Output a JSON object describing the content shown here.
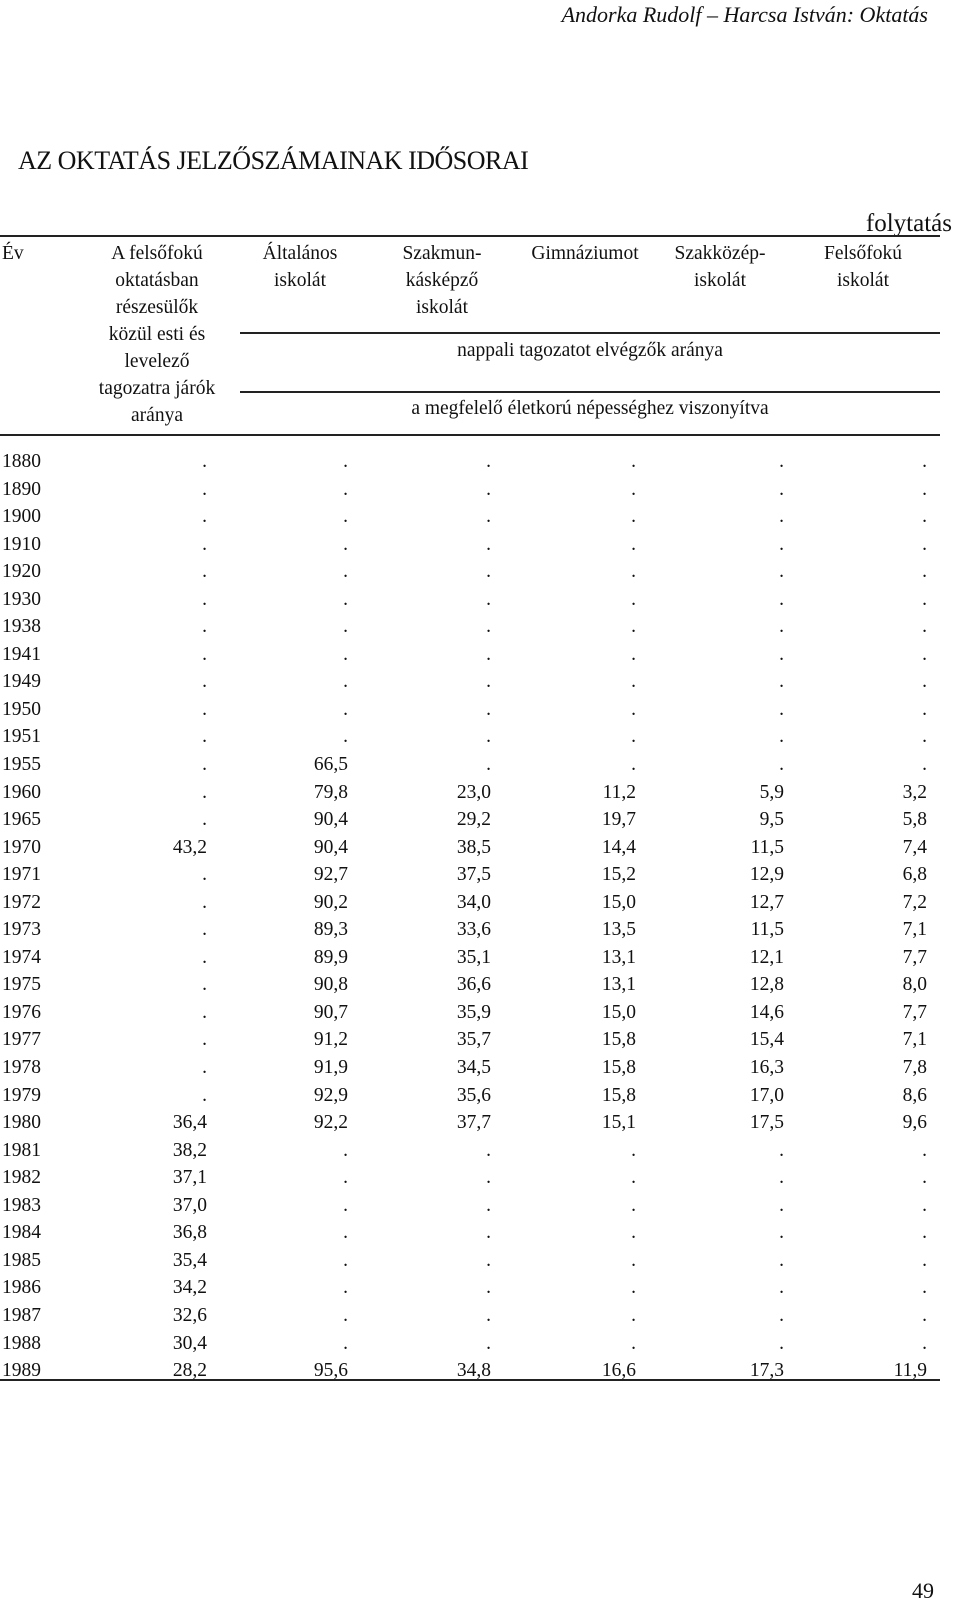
{
  "running_head": "Andorka Rudolf – Harcsa István: Oktatás",
  "title": "AZ OKTATÁS JELZŐSZÁMAINAK IDŐSORAI",
  "continuation": "folytatás",
  "headers": {
    "year": "Év",
    "col1": [
      "A felsőfokú",
      "oktatásban",
      "részesülők",
      "közül esti és",
      "levelező",
      "tagozatra járók",
      "aránya"
    ],
    "col2": [
      "Általános",
      "iskolát"
    ],
    "col3": [
      "Szakmun-",
      "kásképző",
      "iskolát"
    ],
    "col4": [
      "Gimnáziumot"
    ],
    "col5": [
      "Szakközép-",
      "iskolát"
    ],
    "col6": [
      "Felsőfokú",
      "iskolát"
    ],
    "band1": "nappali tagozatot elvégzők aránya",
    "band2": "a megfelelő életkorú népességhez viszonyítva"
  },
  "rows": [
    [
      "1880",
      ".",
      ".",
      ".",
      ".",
      ".",
      "."
    ],
    [
      "1890",
      ".",
      ".",
      ".",
      ".",
      ".",
      "."
    ],
    [
      "1900",
      ".",
      ".",
      ".",
      ".",
      ".",
      "."
    ],
    [
      "1910",
      ".",
      ".",
      ".",
      ".",
      ".",
      "."
    ],
    [
      "1920",
      ".",
      ".",
      ".",
      ".",
      ".",
      "."
    ],
    [
      "1930",
      ".",
      ".",
      ".",
      ".",
      ".",
      "."
    ],
    [
      "1938",
      ".",
      ".",
      ".",
      ".",
      ".",
      "."
    ],
    [
      "1941",
      ".",
      ".",
      ".",
      ".",
      ".",
      "."
    ],
    [
      "1949",
      ".",
      ".",
      ".",
      ".",
      ".",
      "."
    ],
    [
      "1950",
      ".",
      ".",
      ".",
      ".",
      ".",
      "."
    ],
    [
      "1951",
      ".",
      ".",
      ".",
      ".",
      ".",
      "."
    ],
    [
      "1955",
      ".",
      "66,5",
      ".",
      ".",
      ".",
      "."
    ],
    [
      "1960",
      ".",
      "79,8",
      "23,0",
      "11,2",
      "5,9",
      "3,2"
    ],
    [
      "1965",
      ".",
      "90,4",
      "29,2",
      "19,7",
      "9,5",
      "5,8"
    ],
    [
      "1970",
      "43,2",
      "90,4",
      "38,5",
      "14,4",
      "11,5",
      "7,4"
    ],
    [
      "1971",
      ".",
      "92,7",
      "37,5",
      "15,2",
      "12,9",
      "6,8"
    ],
    [
      "1972",
      ".",
      "90,2",
      "34,0",
      "15,0",
      "12,7",
      "7,2"
    ],
    [
      "1973",
      ".",
      "89,3",
      "33,6",
      "13,5",
      "11,5",
      "7,1"
    ],
    [
      "1974",
      ".",
      "89,9",
      "35,1",
      "13,1",
      "12,1",
      "7,7"
    ],
    [
      "1975",
      ".",
      "90,8",
      "36,6",
      "13,1",
      "12,8",
      "8,0"
    ],
    [
      "1976",
      ".",
      "90,7",
      "35,9",
      "15,0",
      "14,6",
      "7,7"
    ],
    [
      "1977",
      ".",
      "91,2",
      "35,7",
      "15,8",
      "15,4",
      "7,1"
    ],
    [
      "1978",
      ".",
      "91,9",
      "34,5",
      "15,8",
      "16,3",
      "7,8"
    ],
    [
      "1979",
      ".",
      "92,9",
      "35,6",
      "15,8",
      "17,0",
      "8,6"
    ],
    [
      "1980",
      "36,4",
      "92,2",
      "37,7",
      "15,1",
      "17,5",
      "9,6"
    ],
    [
      "1981",
      "38,2",
      ".",
      ".",
      ".",
      ".",
      "."
    ],
    [
      "1982",
      "37,1",
      ".",
      ".",
      ".",
      ".",
      "."
    ],
    [
      "1983",
      "37,0",
      ".",
      ".",
      ".",
      ".",
      "."
    ],
    [
      "1984",
      "36,8",
      ".",
      ".",
      ".",
      ".",
      "."
    ],
    [
      "1985",
      "35,4",
      ".",
      ".",
      ".",
      ".",
      "."
    ],
    [
      "1986",
      "34,2",
      ".",
      ".",
      ".",
      ".",
      "."
    ],
    [
      "1987",
      "32,6",
      ".",
      ".",
      ".",
      ".",
      "."
    ],
    [
      "1988",
      "30,4",
      ".",
      ".",
      ".",
      ".",
      "."
    ],
    [
      "1989",
      "28,2",
      "95,6",
      "34,8",
      "16,6",
      "17,3",
      "11,9"
    ]
  ],
  "page_number": "49"
}
